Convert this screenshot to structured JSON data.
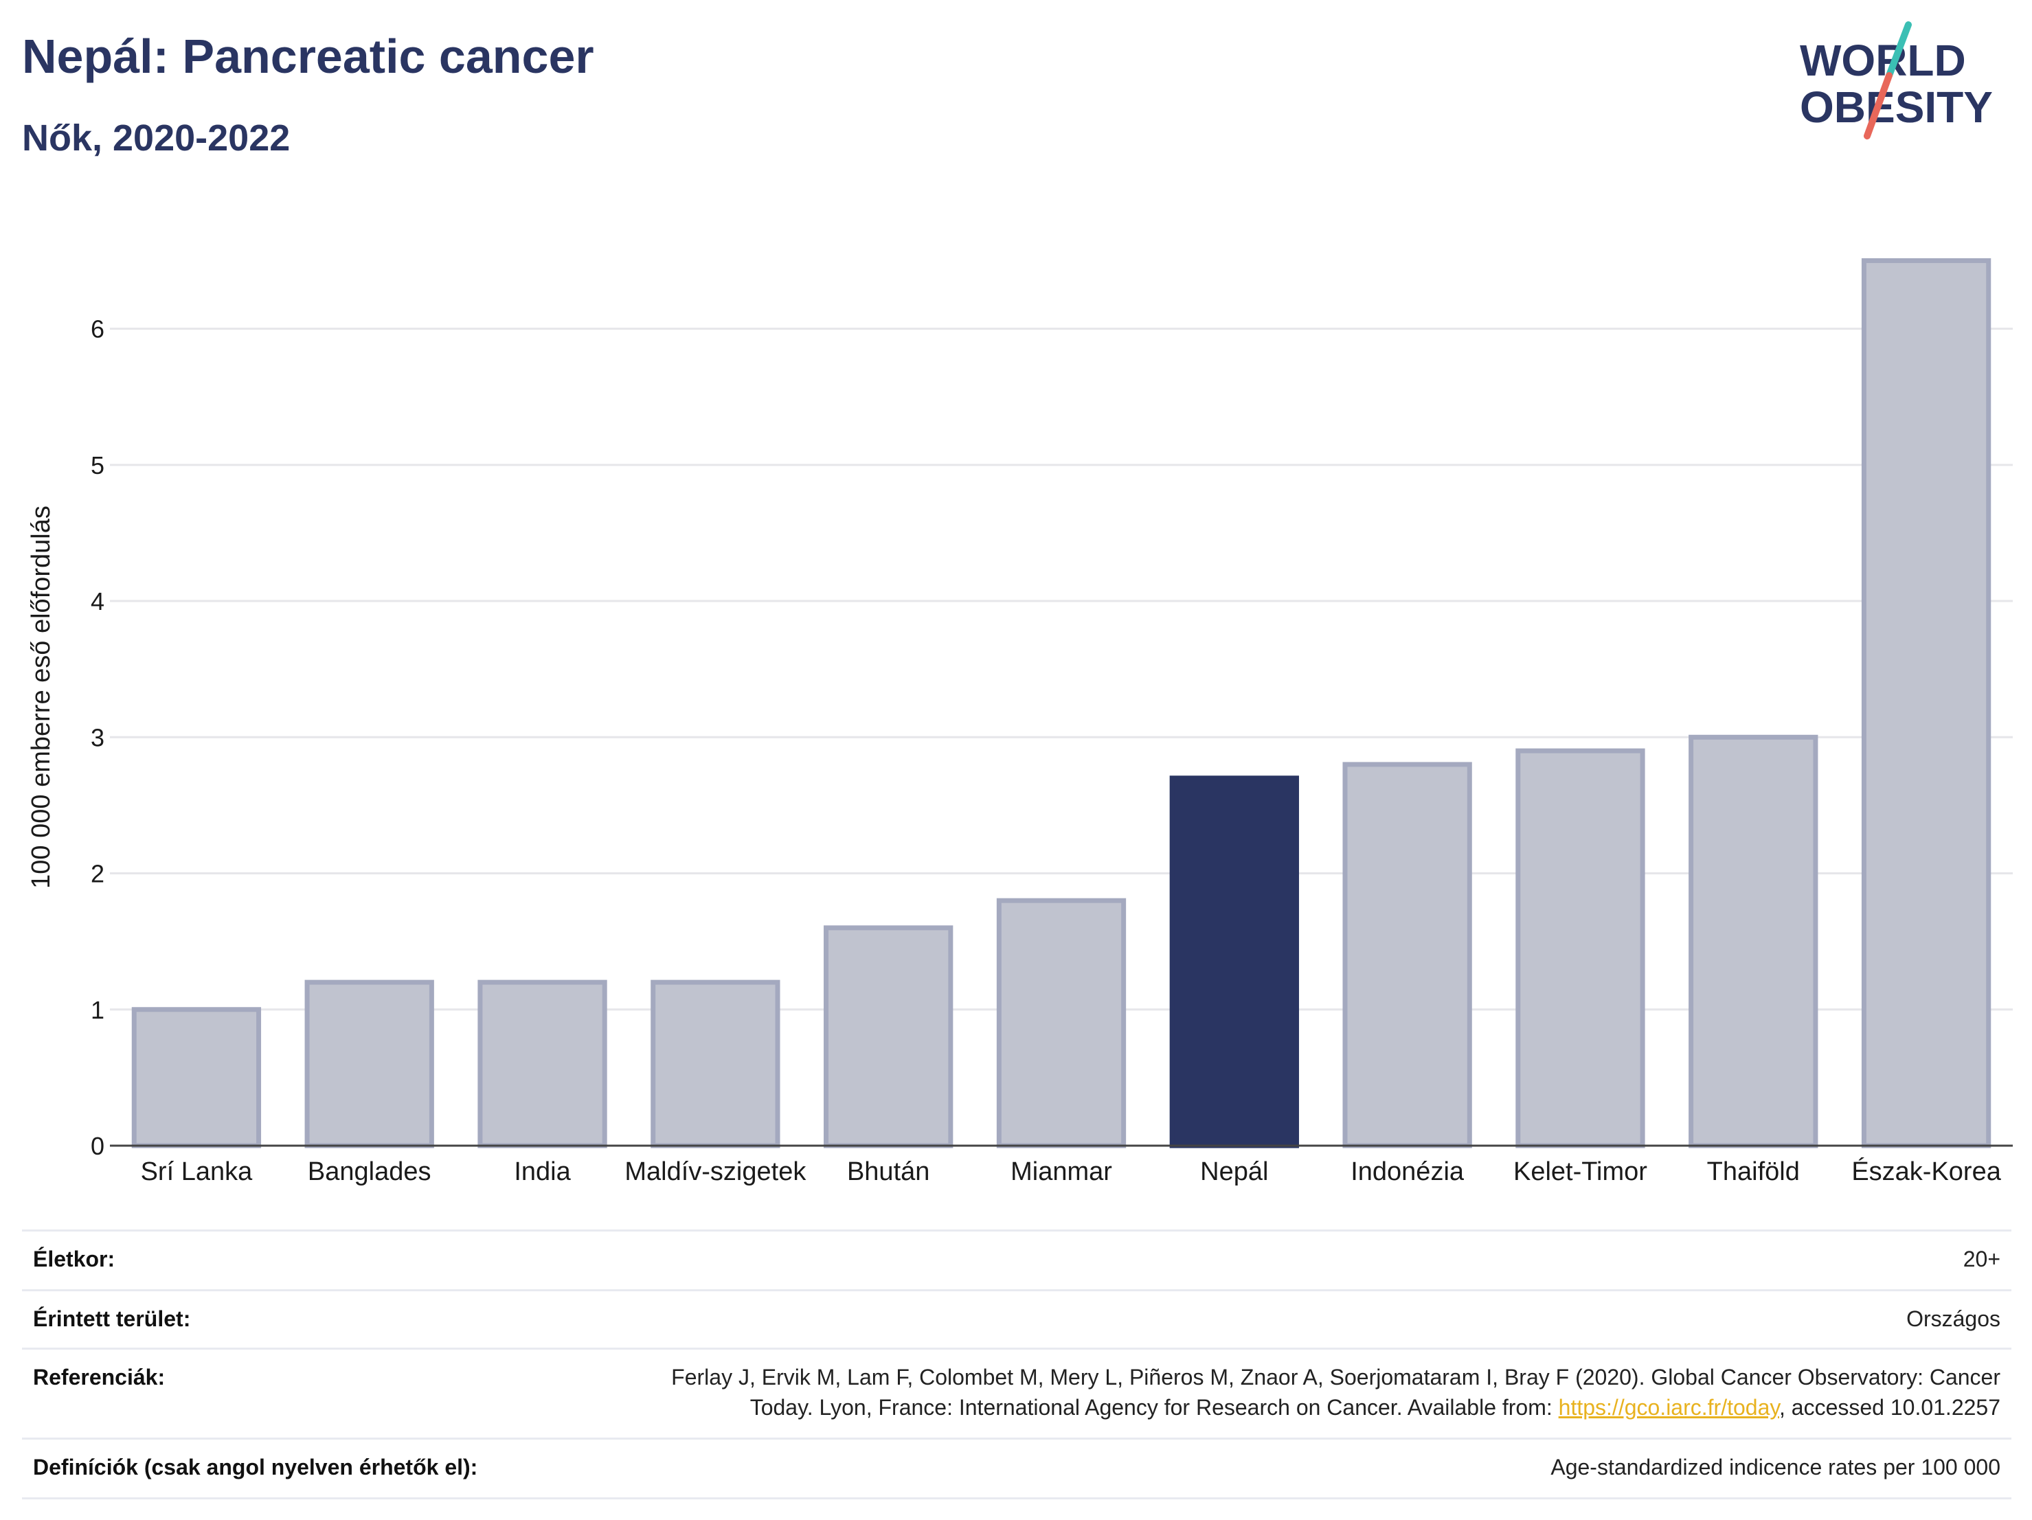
{
  "header": {
    "title": "Nepál: Pancreatic cancer",
    "subtitle": "Nők, 2020-2022"
  },
  "logo": {
    "line1": "WORLD",
    "line2": "OBESITY",
    "accent_teal": "#3bbfb4",
    "accent_coral": "#e8675a",
    "color": "#2a3562"
  },
  "chart_data": {
    "type": "bar",
    "categories": [
      "Srí Lanka",
      "Banglades",
      "India",
      "Maldív-szigetek",
      "Bhután",
      "Mianmar",
      "Nepál",
      "Indonézia",
      "Kelet-Timor",
      "Thaiföld",
      "Észak-Korea"
    ],
    "values": [
      1.0,
      1.2,
      1.2,
      1.2,
      1.6,
      1.8,
      2.7,
      2.8,
      2.9,
      3.0,
      6.5
    ],
    "highlight": "Nepál",
    "ylabel": "100 000 emberre eső előfordulás",
    "ylim": [
      0,
      6.8
    ],
    "yticks": [
      0,
      1,
      2,
      3,
      4,
      5,
      6
    ],
    "grid": true,
    "colors": {
      "bar": "#c0c3cf",
      "bar_border": "#a4a9bf",
      "highlight": "#2a3562",
      "grid": "#e6e6ea",
      "axis": "#444444"
    }
  },
  "meta": {
    "rows": [
      {
        "label": "Életkor:",
        "value_lines": [
          "20+"
        ]
      },
      {
        "label": "Érintett terület:",
        "value_lines": [
          "Országos"
        ]
      },
      {
        "label": "Referenciák:",
        "value_lines": [
          "Ferlay J, Ervik M, Lam F, Colombet M, Mery L, Piñeros M, Znaor A, Soerjomataram I, Bray F (2020). Global Cancer Observatory: Cancer"
        ],
        "value_pre": "Today. Lyon, France: International Agency for Research on Cancer. Available from: ",
        "value_link": "https://gco.iarc.fr/today",
        "value_post": ", accessed 10.01.2257"
      },
      {
        "label": "Definíciók (csak angol nyelven érhetők el):",
        "value_lines": [
          "Age-standardized indicence rates per 100 000"
        ]
      }
    ]
  }
}
